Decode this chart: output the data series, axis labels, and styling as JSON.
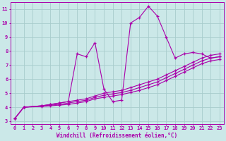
{
  "background_color": "#cbe8e8",
  "grid_color": "#a8cccc",
  "line_color": "#aa00aa",
  "marker": "+",
  "xlabel": "Windchill (Refroidissement éolien,°C)",
  "xlim": [
    -0.5,
    23.5
  ],
  "ylim": [
    2.8,
    11.5
  ],
  "xticks": [
    0,
    1,
    2,
    3,
    4,
    5,
    6,
    7,
    8,
    9,
    10,
    11,
    12,
    13,
    14,
    15,
    16,
    17,
    18,
    19,
    20,
    21,
    22,
    23
  ],
  "yticks": [
    3,
    4,
    5,
    6,
    7,
    8,
    9,
    10,
    11
  ],
  "lines": [
    {
      "x": [
        0,
        1,
        3,
        4,
        5,
        6,
        7,
        8,
        9,
        10,
        11,
        12,
        13,
        14,
        15,
        16,
        17,
        18,
        19,
        20,
        21,
        22,
        23
      ],
      "y": [
        3.2,
        4.0,
        4.1,
        4.2,
        4.3,
        4.4,
        7.8,
        7.6,
        8.6,
        5.3,
        4.4,
        4.5,
        10.0,
        10.4,
        11.2,
        10.5,
        9.0,
        7.5,
        7.8,
        7.9,
        7.8,
        7.5,
        7.6
      ]
    },
    {
      "x": [
        0,
        1,
        3,
        4,
        5,
        6,
        7,
        8,
        9,
        10,
        11,
        12,
        13,
        14,
        15,
        16,
        17,
        18,
        19,
        20,
        21,
        22,
        23
      ],
      "y": [
        3.2,
        4.0,
        4.1,
        4.2,
        4.3,
        4.4,
        4.5,
        4.6,
        4.8,
        5.0,
        5.1,
        5.2,
        5.4,
        5.6,
        5.8,
        6.0,
        6.3,
        6.6,
        6.9,
        7.2,
        7.5,
        7.7,
        7.8
      ]
    },
    {
      "x": [
        0,
        1,
        3,
        4,
        5,
        6,
        7,
        8,
        9,
        10,
        11,
        12,
        13,
        14,
        15,
        16,
        17,
        18,
        19,
        20,
        21,
        22,
        23
      ],
      "y": [
        3.2,
        4.0,
        4.1,
        4.15,
        4.2,
        4.3,
        4.4,
        4.5,
        4.7,
        4.85,
        4.95,
        5.05,
        5.2,
        5.4,
        5.6,
        5.8,
        6.1,
        6.4,
        6.7,
        7.0,
        7.3,
        7.5,
        7.6
      ]
    },
    {
      "x": [
        0,
        1,
        3,
        4,
        5,
        6,
        7,
        8,
        9,
        10,
        11,
        12,
        13,
        14,
        15,
        16,
        17,
        18,
        19,
        20,
        21,
        22,
        23
      ],
      "y": [
        3.2,
        4.0,
        4.05,
        4.1,
        4.15,
        4.2,
        4.3,
        4.4,
        4.6,
        4.7,
        4.8,
        4.9,
        5.05,
        5.2,
        5.4,
        5.6,
        5.9,
        6.2,
        6.5,
        6.8,
        7.1,
        7.3,
        7.4
      ]
    }
  ]
}
